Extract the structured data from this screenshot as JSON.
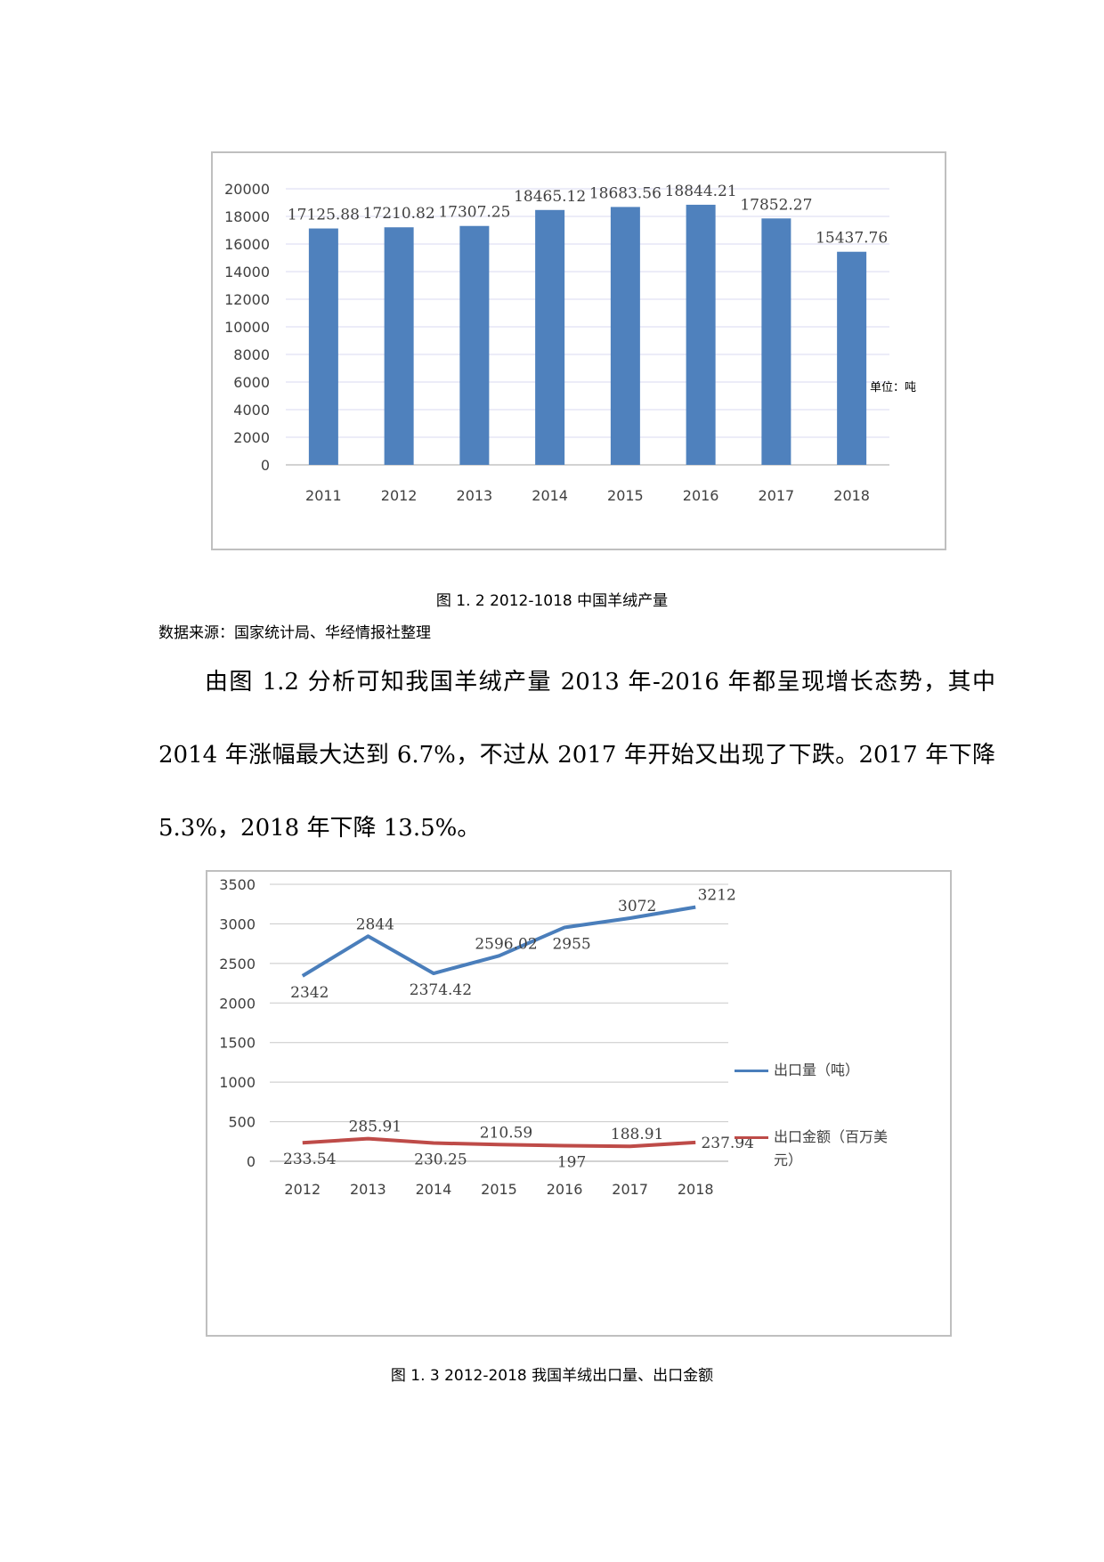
{
  "figure1": {
    "caption": "图 1. 2 2012-1018 中国羊绒产量",
    "unit_note": "单位：吨"
  },
  "source_note": "数据来源：国家统计局、华经情报社整理",
  "paragraph": "由图 1.2 分析可知我国羊绒产量 2013 年-2016 年都呈现增长态势，其中 2014 年涨幅最大达到 6.7%，不过从 2017 年开始又出现了下跌。2017 年下降 5.3%，2018 年下降 13.5%。",
  "figure2": {
    "caption": "图 1. 3 2012-2018 我国羊绒出口量、出口金额"
  },
  "chart_data": [
    {
      "type": "bar",
      "title": "",
      "xlabel": "",
      "ylabel": "",
      "categories": [
        "2011",
        "2012",
        "2013",
        "2014",
        "2015",
        "2016",
        "2017",
        "2018"
      ],
      "values": [
        17125.88,
        17210.82,
        17307.25,
        18465.12,
        18683.56,
        18844.21,
        17852.27,
        15437.76
      ],
      "value_labels": [
        "17125.88",
        "17210.82",
        "17307.25",
        "18465.12",
        "18683.56",
        "18844.21",
        "17852.27",
        "15437.76"
      ],
      "yticks": [
        "0",
        "2000",
        "4000",
        "6000",
        "8000",
        "10000",
        "12000",
        "14000",
        "16000",
        "18000",
        "20000"
      ],
      "ylim": [
        0,
        20000
      ],
      "grid": true,
      "color": "#4f81bd"
    },
    {
      "type": "line",
      "title": "",
      "xlabel": "",
      "ylabel": "",
      "categories": [
        "2012",
        "2013",
        "2014",
        "2015",
        "2016",
        "2017",
        "2018"
      ],
      "yticks": [
        "0",
        "500",
        "1000",
        "1500",
        "2000",
        "2500",
        "3000",
        "3500"
      ],
      "ylim": [
        0,
        3500
      ],
      "grid": true,
      "legend_position": "right",
      "series": [
        {
          "name": "出口量（吨）",
          "color": "#4a7ebb",
          "values": [
            2342,
            2844,
            2374.42,
            2596.02,
            2955,
            3072,
            3212
          ],
          "value_labels": [
            "2342",
            "2844",
            "2374.42",
            "2596.02",
            "2955",
            "3072",
            "3212"
          ]
        },
        {
          "name": "出口金额（百万美元）",
          "name_lines": [
            "出口金额（百万美",
            "元）"
          ],
          "color": "#be4b48",
          "values": [
            233.54,
            285.91,
            230.25,
            210.59,
            197,
            188.91,
            237.94
          ],
          "value_labels": [
            "233.54",
            "285.91",
            "230.25",
            "210.59",
            "197",
            "188.91",
            "237.94"
          ]
        }
      ]
    }
  ]
}
